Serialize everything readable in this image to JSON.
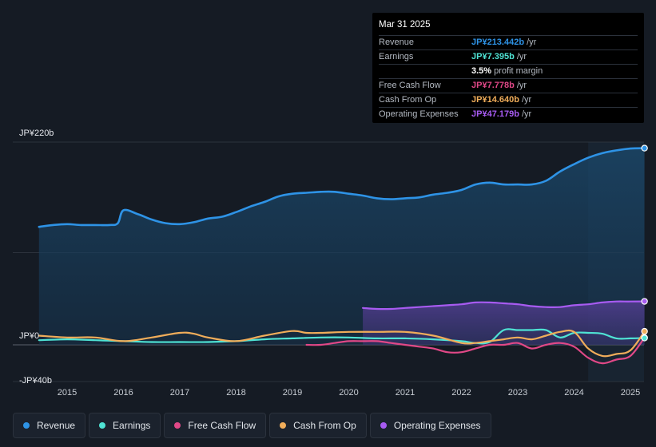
{
  "tooltip": {
    "date": "Mar 31 2025",
    "rows": [
      {
        "label": "Revenue",
        "value": "JP¥213.442b",
        "unit": "/yr",
        "color": "#2e93e6"
      },
      {
        "label": "Earnings",
        "value": "JP¥7.395b",
        "unit": "/yr",
        "color": "#4fe3d4"
      },
      {
        "label": "",
        "value": "3.5%",
        "unit": "profit margin",
        "color": "#ffffff"
      },
      {
        "label": "Free Cash Flow",
        "value": "JP¥7.778b",
        "unit": "/yr",
        "color": "#e04887"
      },
      {
        "label": "Cash From Op",
        "value": "JP¥14.640b",
        "unit": "/yr",
        "color": "#f0ad5a"
      },
      {
        "label": "Operating Expenses",
        "value": "JP¥47.179b",
        "unit": "/yr",
        "color": "#a75bf1"
      }
    ]
  },
  "legend": [
    {
      "label": "Revenue",
      "color": "#2e93e6"
    },
    {
      "label": "Earnings",
      "color": "#4fe3d4"
    },
    {
      "label": "Free Cash Flow",
      "color": "#e04887"
    },
    {
      "label": "Cash From Op",
      "color": "#f0ad5a"
    },
    {
      "label": "Operating Expenses",
      "color": "#a75bf1"
    }
  ],
  "chart_data": {
    "type": "line",
    "title": "",
    "xlabel": "",
    "ylabel": "",
    "ylim": [
      -40,
      220
    ],
    "y_axis_labels": [
      "JP¥220b",
      "JP¥0",
      "-JP¥40b"
    ],
    "x_ticks": [
      "2015",
      "2016",
      "2017",
      "2018",
      "2019",
      "2020",
      "2021",
      "2022",
      "2023",
      "2024",
      "2025"
    ],
    "x_tick_values": [
      2015.0,
      2016.0,
      2017.0,
      2018.0,
      2019.0,
      2020.0,
      2021.0,
      2022.0,
      2023.0,
      2024.0,
      2025.0
    ],
    "xlim": [
      2014.0,
      2025.5
    ],
    "shaded_from": 2024.25,
    "series": [
      {
        "name": "Revenue",
        "color": "#2e93e6",
        "x": [
          2014.5,
          2014.75,
          2015.0,
          2015.25,
          2015.5,
          2015.75,
          2015.9,
          2016.0,
          2016.25,
          2016.5,
          2016.75,
          2017.0,
          2017.25,
          2017.5,
          2017.75,
          2018.0,
          2018.25,
          2018.5,
          2018.75,
          2019.0,
          2019.25,
          2019.5,
          2019.75,
          2020.0,
          2020.25,
          2020.5,
          2020.75,
          2021.0,
          2021.25,
          2021.5,
          2021.75,
          2022.0,
          2022.25,
          2022.5,
          2022.75,
          2023.0,
          2023.25,
          2023.5,
          2023.75,
          2024.0,
          2024.25,
          2024.5,
          2024.75,
          2025.0,
          2025.25
        ],
        "values": [
          128,
          130,
          131,
          130,
          130,
          130,
          132,
          146,
          142,
          136,
          132,
          131,
          133,
          137,
          139,
          144,
          150,
          155,
          161,
          164,
          165,
          166,
          166,
          164,
          162,
          159,
          158,
          159,
          160,
          163,
          165,
          168,
          174,
          176,
          174,
          174,
          174,
          178,
          188,
          196,
          203,
          208,
          211,
          213,
          213.442
        ]
      },
      {
        "name": "Earnings",
        "color": "#4fe3d4",
        "x": [
          2014.5,
          2015.0,
          2015.5,
          2016.0,
          2016.5,
          2017.0,
          2017.5,
          2018.0,
          2018.5,
          2019.0,
          2019.5,
          2020.0,
          2020.5,
          2021.0,
          2021.5,
          2022.0,
          2022.25,
          2022.5,
          2022.75,
          2023.0,
          2023.25,
          2023.5,
          2023.75,
          2024.0,
          2024.25,
          2024.5,
          2024.75,
          2025.0,
          2025.25
        ],
        "values": [
          5,
          6,
          5,
          4,
          3,
          3,
          3,
          4,
          6,
          7,
          8,
          8,
          7,
          7,
          6,
          4,
          2,
          3,
          16,
          16,
          16,
          16,
          8,
          13,
          13,
          12,
          7,
          7,
          7.395
        ]
      },
      {
        "name": "Free Cash Flow",
        "color": "#e04887",
        "x": [
          2019.25,
          2019.5,
          2019.75,
          2020.0,
          2020.25,
          2020.5,
          2020.75,
          2021.0,
          2021.25,
          2021.5,
          2021.75,
          2022.0,
          2022.25,
          2022.5,
          2022.75,
          2023.0,
          2023.25,
          2023.5,
          2023.75,
          2024.0,
          2024.25,
          2024.5,
          2024.75,
          2025.0,
          2025.25
        ],
        "values": [
          0,
          0,
          2,
          4,
          4,
          4,
          2,
          0,
          -2,
          -4,
          -8,
          -8,
          -4,
          0,
          0,
          2,
          -4,
          0,
          2,
          -2,
          -14,
          -20,
          -16,
          -12,
          7.778
        ]
      },
      {
        "name": "Cash From Op",
        "color": "#f0ad5a",
        "x": [
          2014.5,
          2015.0,
          2015.5,
          2016.0,
          2016.5,
          2017.0,
          2017.25,
          2017.5,
          2018.0,
          2018.5,
          2019.0,
          2019.25,
          2019.5,
          2020.0,
          2020.5,
          2021.0,
          2021.5,
          2022.0,
          2022.25,
          2022.5,
          2022.75,
          2023.0,
          2023.25,
          2023.5,
          2023.75,
          2024.0,
          2024.25,
          2024.5,
          2024.75,
          2025.0,
          2025.25
        ],
        "values": [
          10,
          8,
          8,
          4,
          8,
          13,
          12,
          8,
          4,
          10,
          15,
          13,
          13,
          14,
          14,
          14,
          10,
          2,
          2,
          4,
          6,
          8,
          6,
          10,
          14,
          14,
          -4,
          -12,
          -10,
          -6,
          14.64
        ]
      },
      {
        "name": "Operating Expenses",
        "color": "#a75bf1",
        "x": [
          2020.25,
          2020.5,
          2020.75,
          2021.0,
          2021.25,
          2021.5,
          2021.75,
          2022.0,
          2022.25,
          2022.5,
          2022.75,
          2023.0,
          2023.25,
          2023.5,
          2023.75,
          2024.0,
          2024.25,
          2024.5,
          2024.75,
          2025.0,
          2025.25
        ],
        "values": [
          40,
          39,
          39,
          40,
          41,
          42,
          43,
          44,
          46,
          46,
          45,
          44,
          42,
          41,
          41,
          43,
          44,
          46,
          47,
          47,
          47.179
        ]
      }
    ]
  }
}
